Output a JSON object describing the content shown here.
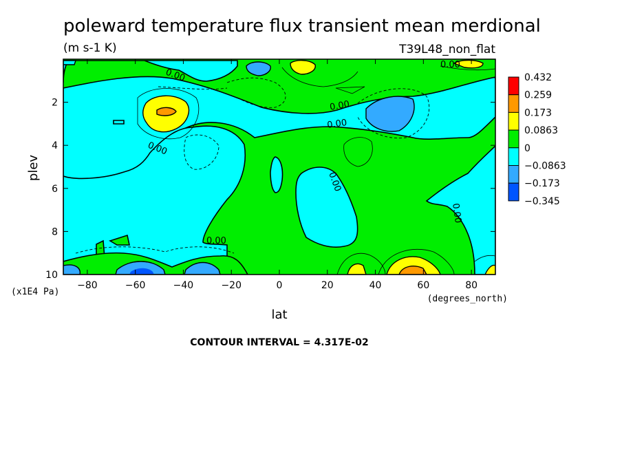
{
  "chart_data": {
    "type": "heatmap",
    "title": "poleward temperature flux transient mean merdional",
    "units": "(m s-1 K)",
    "experiment": "T39L48_non_flat",
    "xlabel": "lat",
    "x_unit": "(degrees_north)",
    "ylabel": "plev",
    "y_unit": "(x1E4 Pa)",
    "xlim": [
      -90,
      90
    ],
    "ylim": [
      0,
      10
    ],
    "y_inverted": true,
    "x_ticks": [
      -80,
      -60,
      -40,
      -20,
      0,
      20,
      40,
      60,
      80
    ],
    "y_ticks": [
      2,
      4,
      6,
      8,
      10
    ],
    "legend": {
      "position": "right",
      "levels": [
        "0.432",
        "0.259",
        "0.173",
        "0.0863",
        "0",
        "-0.0863",
        "-0.173",
        "-0.345"
      ],
      "colors": [
        "#ff0000",
        "#ff9900",
        "#ffff00",
        "#00ee00",
        "#00ffff",
        "#33aaff",
        "#0055ff"
      ]
    },
    "contour_label": "0.00",
    "contour_interval_text": "CONTOUR INTERVAL = 4.317E-02"
  }
}
